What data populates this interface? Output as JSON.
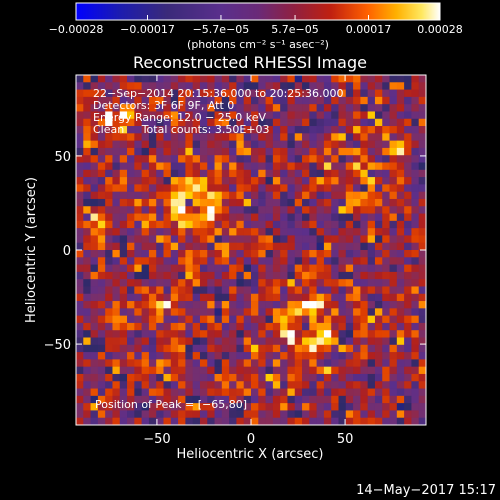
{
  "chart_data": {
    "type": "heatmap",
    "title": "Reconstructed RHESSI Image",
    "xlabel": "Heliocentric X (arcsec)",
    "ylabel": "Heliocentric Y (arcsec)",
    "xlim": [
      -93,
      93
    ],
    "ylim": [
      -93,
      93
    ],
    "x_ticks": [
      {
        "value": -50,
        "label": "−50"
      },
      {
        "value": 0,
        "label": "0"
      },
      {
        "value": 50,
        "label": "50"
      }
    ],
    "y_ticks": [
      {
        "value": 50,
        "label": "50"
      },
      {
        "value": 0,
        "label": "0"
      },
      {
        "value": -50,
        "label": "−50"
      }
    ],
    "colorbar": {
      "range": [
        -0.00028,
        0.00028
      ],
      "ticks": [
        {
          "value": -0.00028,
          "label": "−0.00028"
        },
        {
          "value": -0.00017,
          "label": "−0.00017"
        },
        {
          "value": -5.7e-05,
          "label": "−5.7e−05"
        },
        {
          "value": 5.7e-05,
          "label": "5.7e−05"
        },
        {
          "value": 0.00017,
          "label": "0.00017"
        },
        {
          "value": 0.00028,
          "label": "0.00028"
        }
      ],
      "units": "(photons cm⁻² s⁻¹ asec⁻²)",
      "colors": [
        "#0000ff",
        "#1c1c9a",
        "#2a2a6a",
        "#3b2a6a",
        "#5a2f8c",
        "#7a2f6a",
        "#b0201e",
        "#e04000",
        "#ff8000",
        "#ffd000",
        "#ffffff"
      ]
    },
    "annotations": [
      "22−Sep−2014 20:15:36.000 to 20:25:36.000",
      "Detectors: 3F 6F 9F, Att 0",
      "Energy Range: 12.0 − 25.0 keV",
      "Clean     Total counts: 3.50E+03"
    ],
    "peak_label": "Position of Peak = [−65,80]",
    "peak": [
      -65,
      80
    ],
    "hot_regions": [
      {
        "x": -30,
        "y": 25,
        "sigma": 18,
        "amplitude": 0.00028
      },
      {
        "x": -72,
        "y": 70,
        "sigma": 10,
        "amplitude": 0.00026
      },
      {
        "x": 30,
        "y": -40,
        "sigma": 17,
        "amplitude": 0.00027
      },
      {
        "x": 10,
        "y": -70,
        "sigma": 12,
        "amplitude": 0.00014
      },
      {
        "x": 60,
        "y": 45,
        "sigma": 20,
        "amplitude": 0.00018
      },
      {
        "x": -55,
        "y": -45,
        "sigma": 16,
        "amplitude": 0.00016
      },
      {
        "x": 75,
        "y": -35,
        "sigma": 14,
        "amplitude": 0.00013
      },
      {
        "x": -80,
        "y": 10,
        "sigma": 12,
        "amplitude": 0.00012
      }
    ],
    "colormap_note": "blue (negative) through purple to red, yellow and white (positive)"
  },
  "footer": {
    "date": "14−May−2017 15:17"
  }
}
